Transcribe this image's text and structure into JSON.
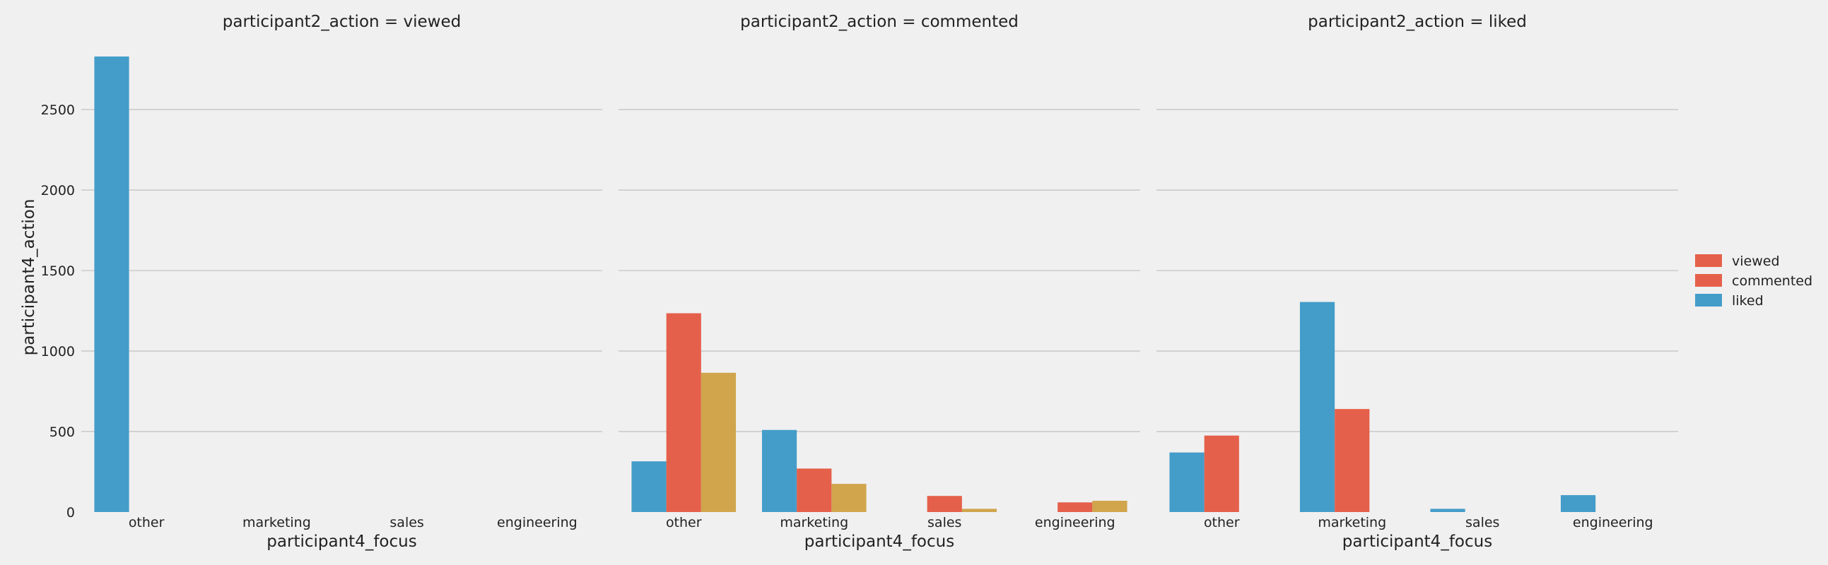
{
  "chart_data": {
    "type": "bar",
    "ylabel": "participant4_action",
    "ylim": [
      0,
      2830
    ],
    "yticks": [
      0,
      500,
      1000,
      1500,
      2000,
      2500
    ],
    "grid": true,
    "legend_placement": "right",
    "legend": [
      {
        "label": "viewed",
        "color": "#e5604a"
      },
      {
        "label": "commented",
        "color": "#e5604a"
      },
      {
        "label": "liked",
        "color": "#449dc9"
      }
    ],
    "facets": [
      {
        "title": "participant2_action = viewed",
        "xlabel": "participant4_focus",
        "categories": [
          "other",
          "marketing",
          "sales",
          "engineering"
        ],
        "series": [
          {
            "color": "#449dc9",
            "values": [
              2830,
              0,
              0,
              0
            ]
          },
          {
            "color": "#e5604a",
            "values": [
              0,
              0,
              0,
              0
            ]
          },
          {
            "color": "#d0a54c",
            "values": [
              0,
              0,
              0,
              0
            ]
          }
        ]
      },
      {
        "title": "participant2_action = commented",
        "xlabel": "participant4_focus",
        "categories": [
          "other",
          "marketing",
          "sales",
          "engineering"
        ],
        "series": [
          {
            "color": "#449dc9",
            "values": [
              315,
              510,
              0,
              0
            ]
          },
          {
            "color": "#e5604a",
            "values": [
              1235,
              270,
              100,
              60
            ]
          },
          {
            "color": "#d0a54c",
            "values": [
              865,
              175,
              20,
              70
            ]
          }
        ]
      },
      {
        "title": "participant2_action = liked",
        "xlabel": "participant4_focus",
        "categories": [
          "other",
          "marketing",
          "sales",
          "engineering"
        ],
        "series": [
          {
            "color": "#449dc9",
            "values": [
              370,
              1305,
              20,
              105
            ]
          },
          {
            "color": "#e5604a",
            "values": [
              475,
              640,
              0,
              0
            ]
          }
        ]
      }
    ]
  }
}
